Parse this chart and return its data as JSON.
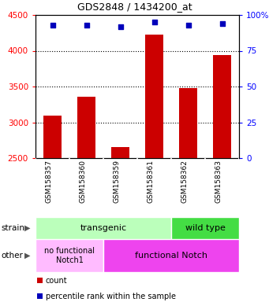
{
  "title": "GDS2848 / 1434200_at",
  "samples": [
    "GSM158357",
    "GSM158360",
    "GSM158359",
    "GSM158361",
    "GSM158362",
    "GSM158363"
  ],
  "counts": [
    3090,
    3360,
    2650,
    4230,
    3480,
    3940
  ],
  "percentiles": [
    93,
    93,
    92,
    95,
    93,
    94
  ],
  "ylim": [
    2500,
    4500
  ],
  "y_ticks": [
    2500,
    3000,
    3500,
    4000,
    4500
  ],
  "right_ylim": [
    0,
    100
  ],
  "right_ticks": [
    0,
    25,
    50,
    75,
    100
  ],
  "right_tick_labels": [
    "0",
    "25",
    "50",
    "75",
    "100%"
  ],
  "bar_color": "#cc0000",
  "dot_color": "#0000bb",
  "bar_width": 0.55,
  "strain_label_transgenic": "transgenic",
  "strain_label_wildtype": "wild type",
  "other_label_nofunc": "no functional\nNotch1",
  "other_label_func": "functional Notch",
  "color_transgenic": "#bbffbb",
  "color_wildtype": "#44dd44",
  "color_nofunc": "#ffbbff",
  "color_func": "#ee44ee",
  "legend_count_label": "count",
  "legend_pct_label": "percentile rank within the sample",
  "gridline_color": "#555555",
  "gridline_ticks": [
    3000,
    3500,
    4000
  ],
  "xtick_bg": "#cccccc",
  "plot_bg": "#ffffff"
}
